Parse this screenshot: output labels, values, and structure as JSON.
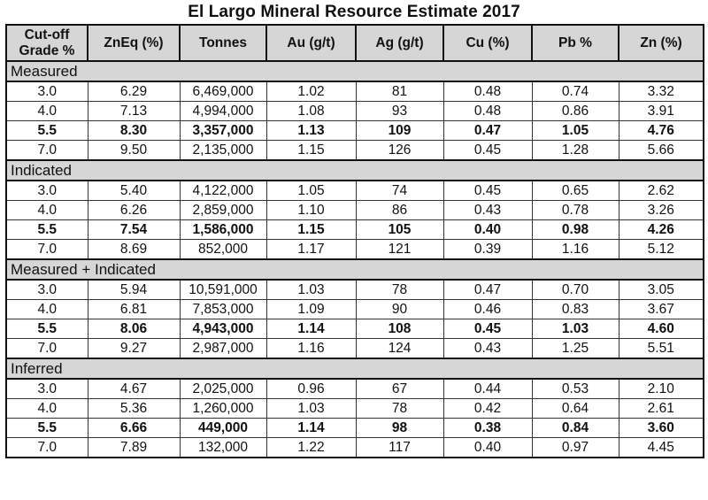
{
  "title": "El Largo  Mineral Resource Estimate 2017",
  "headers": [
    "Cut-off Grade %",
    "ZnEq (%)",
    "Tonnes",
    "Au (g/t)",
    "Ag (g/t)",
    "Cu (%)",
    "Pb %",
    "Zn (%)"
  ],
  "sections": [
    {
      "name": "Measured",
      "rows": [
        {
          "bold": false,
          "cells": [
            "3.0",
            "6.29",
            "6,469,000",
            "1.02",
            "81",
            "0.48",
            "0.74",
            "3.32"
          ]
        },
        {
          "bold": false,
          "cells": [
            "4.0",
            "7.13",
            "4,994,000",
            "1.08",
            "93",
            "0.48",
            "0.86",
            "3.91"
          ]
        },
        {
          "bold": true,
          "cells": [
            "5.5",
            "8.30",
            "3,357,000",
            "1.13",
            "109",
            "0.47",
            "1.05",
            "4.76"
          ]
        },
        {
          "bold": false,
          "cells": [
            "7.0",
            "9.50",
            "2,135,000",
            "1.15",
            "126",
            "0.45",
            "1.28",
            "5.66"
          ]
        }
      ]
    },
    {
      "name": "Indicated",
      "rows": [
        {
          "bold": false,
          "cells": [
            "3.0",
            "5.40",
            "4,122,000",
            "1.05",
            "74",
            "0.45",
            "0.65",
            "2.62"
          ]
        },
        {
          "bold": false,
          "cells": [
            "4.0",
            "6.26",
            "2,859,000",
            "1.10",
            "86",
            "0.43",
            "0.78",
            "3.26"
          ]
        },
        {
          "bold": true,
          "cells": [
            "5.5",
            "7.54",
            "1,586,000",
            "1.15",
            "105",
            "0.40",
            "0.98",
            "4.26"
          ]
        },
        {
          "bold": false,
          "cells": [
            "7.0",
            "8.69",
            "852,000",
            "1.17",
            "121",
            "0.39",
            "1.16",
            "5.12"
          ]
        }
      ]
    },
    {
      "name": "Measured + Indicated",
      "rows": [
        {
          "bold": false,
          "cells": [
            "3.0",
            "5.94",
            "10,591,000",
            "1.03",
            "78",
            "0.47",
            "0.70",
            "3.05"
          ]
        },
        {
          "bold": false,
          "cells": [
            "4.0",
            "6.81",
            "7,853,000",
            "1.09",
            "90",
            "0.46",
            "0.83",
            "3.67"
          ]
        },
        {
          "bold": true,
          "cells": [
            "5.5",
            "8.06",
            "4,943,000",
            "1.14",
            "108",
            "0.45",
            "1.03",
            "4.60"
          ]
        },
        {
          "bold": false,
          "cells": [
            "7.0",
            "9.27",
            "2,987,000",
            "1.16",
            "124",
            "0.43",
            "1.25",
            "5.51"
          ]
        }
      ]
    },
    {
      "name": "Inferred",
      "rows": [
        {
          "bold": false,
          "cells": [
            "3.0",
            "4.67",
            "2,025,000",
            "0.96",
            "67",
            "0.44",
            "0.53",
            "2.10"
          ]
        },
        {
          "bold": false,
          "cells": [
            "4.0",
            "5.36",
            "1,260,000",
            "1.03",
            "78",
            "0.42",
            "0.64",
            "2.61"
          ]
        },
        {
          "bold": true,
          "cells": [
            "5.5",
            "6.66",
            "449,000",
            "1.14",
            "98",
            "0.38",
            "0.84",
            "3.60"
          ]
        },
        {
          "bold": false,
          "cells": [
            "7.0",
            "7.89",
            "132,000",
            "1.22",
            "117",
            "0.40",
            "0.97",
            "4.45"
          ]
        }
      ]
    }
  ]
}
